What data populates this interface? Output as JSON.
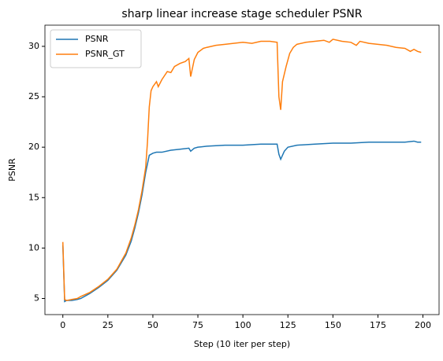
{
  "chart_data": {
    "type": "line",
    "title": "sharp linear increase stage scheduler PSNR",
    "xlabel": "Step (10 iter per step)",
    "ylabel": "PSNR",
    "series": [
      {
        "name": "PSNR",
        "color": "#1f77b4",
        "x": [
          0,
          1,
          2,
          5,
          8,
          10,
          15,
          20,
          25,
          30,
          35,
          38,
          40,
          42,
          44,
          46,
          48,
          50,
          52,
          55,
          60,
          65,
          70,
          71,
          73,
          75,
          80,
          90,
          100,
          110,
          119,
          120,
          121,
          123,
          125,
          130,
          140,
          150,
          160,
          170,
          180,
          190,
          195,
          197,
          199
        ],
        "values": [
          10.3,
          4.7,
          4.8,
          4.8,
          4.9,
          5.0,
          5.5,
          6.1,
          6.8,
          7.8,
          9.3,
          10.7,
          12,
          13.5,
          15.3,
          17.5,
          19.2,
          19.4,
          19.5,
          19.5,
          19.7,
          19.8,
          19.9,
          19.6,
          19.9,
          20.0,
          20.1,
          20.2,
          20.2,
          20.3,
          20.3,
          19.3,
          18.8,
          19.6,
          20.0,
          20.2,
          20.3,
          20.4,
          20.4,
          20.5,
          20.5,
          20.5,
          20.6,
          20.5,
          20.5
        ]
      },
      {
        "name": "PSNR_GT",
        "color": "#ff7f0e",
        "x": [
          0,
          1,
          2,
          5,
          8,
          10,
          15,
          20,
          25,
          30,
          35,
          38,
          40,
          42,
          44,
          46,
          47,
          48,
          49,
          50,
          52,
          53,
          55,
          58,
          60,
          62,
          65,
          68,
          70,
          71,
          73,
          75,
          78,
          80,
          85,
          90,
          100,
          105,
          110,
          115,
          119,
          120,
          121,
          122,
          124,
          126,
          128,
          130,
          135,
          140,
          145,
          148,
          150,
          155,
          160,
          163,
          165,
          170,
          175,
          180,
          185,
          190,
          193,
          195,
          197,
          199
        ],
        "values": [
          10.6,
          4.9,
          4.8,
          4.9,
          5.0,
          5.2,
          5.6,
          6.2,
          6.9,
          7.9,
          9.5,
          11,
          12.3,
          13.8,
          15.7,
          18,
          20.5,
          24,
          25.6,
          26,
          26.5,
          26,
          26.7,
          27.5,
          27.4,
          28,
          28.3,
          28.5,
          28.8,
          27,
          28.7,
          29.4,
          29.8,
          29.9,
          30.1,
          30.2,
          30.4,
          30.3,
          30.5,
          30.5,
          30.4,
          25,
          23.7,
          26.5,
          28,
          29.3,
          29.9,
          30.2,
          30.4,
          30.5,
          30.6,
          30.4,
          30.7,
          30.5,
          30.4,
          30.1,
          30.5,
          30.3,
          30.2,
          30.1,
          29.9,
          29.8,
          29.5,
          29.7,
          29.5,
          29.4
        ]
      }
    ],
    "xlim": [
      -9.95,
      208.95
    ],
    "xticks": [
      0,
      25,
      50,
      75,
      100,
      125,
      150,
      175,
      200
    ],
    "ylim": [
      3.4,
      32.1
    ],
    "yticks": [
      5,
      10,
      15,
      20,
      25,
      30
    ],
    "grid": false,
    "legend": "upper left"
  }
}
